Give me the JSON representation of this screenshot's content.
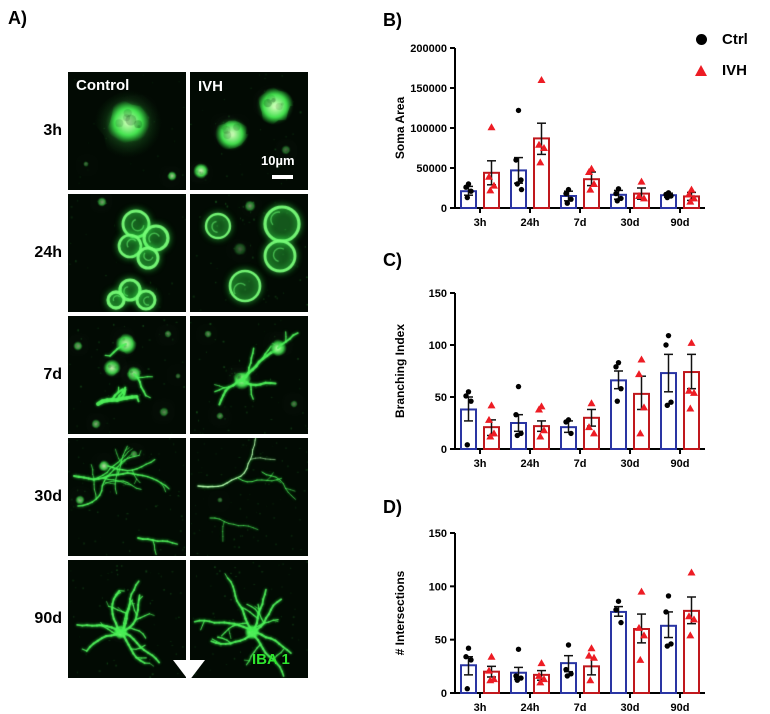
{
  "panel_a": {
    "label": "A)",
    "column_headers": {
      "control": "Control",
      "ivh": "IVH"
    },
    "row_labels": [
      "3h",
      "24h",
      "7d",
      "30d",
      "90d"
    ],
    "scale_bar_label": "10µm",
    "stain_label": "IBA 1",
    "stain_color": "#2ee62e",
    "tiles": [
      {
        "row": "3h",
        "col": "Control",
        "variant": "amoeboid_single",
        "seed": 11
      },
      {
        "row": "3h",
        "col": "IVH",
        "variant": "amoeboid_double",
        "seed": 22
      },
      {
        "row": "24h",
        "col": "Control",
        "variant": "cluster_a",
        "seed": 33
      },
      {
        "row": "24h",
        "col": "IVH",
        "variant": "cluster_b",
        "seed": 44
      },
      {
        "row": "7d",
        "col": "Control",
        "variant": "transitional_a",
        "seed": 55
      },
      {
        "row": "7d",
        "col": "IVH",
        "variant": "transitional_b",
        "seed": 66
      },
      {
        "row": "30d",
        "col": "Control",
        "variant": "wispy_a",
        "seed": 77
      },
      {
        "row": "30d",
        "col": "IVH",
        "variant": "wispy_b",
        "seed": 88
      },
      {
        "row": "90d",
        "col": "Control",
        "variant": "ramified",
        "seed": 99
      },
      {
        "row": "90d",
        "col": "IVH",
        "variant": "ramified",
        "seed": 123
      }
    ]
  },
  "legend": {
    "items": [
      {
        "label": "Ctrl",
        "marker": "circle",
        "color": "#000000"
      },
      {
        "label": "IVH",
        "marker": "triangle",
        "color": "#ed1c24"
      }
    ]
  },
  "colors": {
    "ctrl_bar": "#2a35a3",
    "ivh_bar": "#c0181d",
    "ctrl_point": "#000000",
    "ivh_point": "#ed1c24",
    "axis": "#000000"
  },
  "chart_data": [
    {
      "panel_label": "B)",
      "type": "bar",
      "ylabel": "Soma Area",
      "xlabel": "",
      "ylim": [
        0,
        200000
      ],
      "yticks": [
        0,
        50000,
        100000,
        150000,
        200000
      ],
      "categories": [
        "3h",
        "24h",
        "7d",
        "30d",
        "90d"
      ],
      "grid": false,
      "legend_position": "top-right-outside",
      "series": [
        {
          "name": "Ctrl",
          "marker": "circle",
          "means": [
            21000,
            47000,
            15000,
            16500,
            16000
          ],
          "err_low": [
            16000,
            31000,
            9000,
            11000,
            13500
          ],
          "err_high": [
            27000,
            63000,
            21000,
            22000,
            18500
          ],
          "points": [
            [
              30000,
              26000,
              21000,
              13000
            ],
            [
              122000,
              60000,
              35000,
              30000,
              23000
            ],
            [
              23000,
              18000,
              11000,
              6000
            ],
            [
              24000,
              18000,
              12000,
              9000
            ],
            [
              19000,
              17000,
              15000,
              13000
            ]
          ]
        },
        {
          "name": "IVH",
          "marker": "triangle",
          "means": [
            44000,
            87000,
            36000,
            18000,
            14500
          ],
          "err_low": [
            29000,
            67000,
            28000,
            11000,
            9500
          ],
          "err_high": [
            59000,
            106000,
            45000,
            25000,
            19500
          ],
          "points": [
            [
              101000,
              39000,
              28000,
              22000
            ],
            [
              160000,
              79000,
              75000,
              57000
            ],
            [
              49000,
              45000,
              30000,
              23000
            ],
            [
              33000,
              15000,
              12000
            ],
            [
              23000,
              17000,
              12000,
              8000
            ]
          ]
        }
      ]
    },
    {
      "panel_label": "C)",
      "type": "bar",
      "ylabel": "Branching Index",
      "xlabel": "",
      "ylim": [
        0,
        150
      ],
      "yticks": [
        0,
        50,
        100,
        150
      ],
      "categories": [
        "3h",
        "24h",
        "7d",
        "30d",
        "90d"
      ],
      "grid": false,
      "series": [
        {
          "name": "Ctrl",
          "marker": "circle",
          "means": [
            38,
            25,
            21,
            66,
            73
          ],
          "err_low": [
            27,
            17,
            16,
            58,
            55
          ],
          "err_high": [
            50,
            33,
            27,
            75,
            91
          ],
          "points": [
            [
              55,
              51,
              46,
              4
            ],
            [
              60,
              33,
              15,
              13
            ],
            [
              28,
              26,
              15
            ],
            [
              83,
              79,
              58,
              46
            ],
            [
              109,
              100,
              45,
              42
            ]
          ]
        },
        {
          "name": "IVH",
          "marker": "triangle",
          "means": [
            21,
            22,
            30,
            53,
            74
          ],
          "err_low": [
            13,
            17,
            22,
            38,
            58
          ],
          "err_high": [
            28,
            27,
            38,
            70,
            91
          ],
          "points": [
            [
              42,
              28,
              15,
              12
            ],
            [
              41,
              38,
              18,
              12
            ],
            [
              44,
              21,
              15
            ],
            [
              86,
              72,
              40,
              15
            ],
            [
              102,
              56,
              54,
              39
            ]
          ]
        }
      ]
    },
    {
      "panel_label": "D)",
      "type": "bar",
      "ylabel": "# Intersections",
      "xlabel": "",
      "ylim": [
        0,
        150
      ],
      "yticks": [
        0,
        50,
        100,
        150
      ],
      "categories": [
        "3h",
        "24h",
        "7d",
        "30d",
        "90d"
      ],
      "grid": false,
      "series": [
        {
          "name": "Ctrl",
          "marker": "circle",
          "means": [
            26,
            19,
            28,
            76,
            63
          ],
          "err_low": [
            17,
            13,
            20,
            72,
            52
          ],
          "err_high": [
            34,
            24,
            35,
            81,
            76
          ],
          "points": [
            [
              42,
              34,
              31,
              4
            ],
            [
              41,
              16,
              14,
              12
            ],
            [
              45,
              22,
              18,
              16
            ],
            [
              86,
              78,
              66
            ],
            [
              91,
              76,
              46,
              44
            ]
          ]
        },
        {
          "name": "IVH",
          "marker": "triangle",
          "means": [
            20,
            17,
            25,
            60,
            77
          ],
          "err_low": [
            15,
            12,
            17,
            47,
            65
          ],
          "err_high": [
            25,
            21,
            33,
            74,
            90
          ],
          "points": [
            [
              34,
              21,
              13,
              12
            ],
            [
              28,
              16,
              13,
              10
            ],
            [
              42,
              35,
              33,
              12
            ],
            [
              95,
              61,
              54,
              31
            ],
            [
              113,
              72,
              69,
              54
            ]
          ]
        }
      ]
    }
  ]
}
